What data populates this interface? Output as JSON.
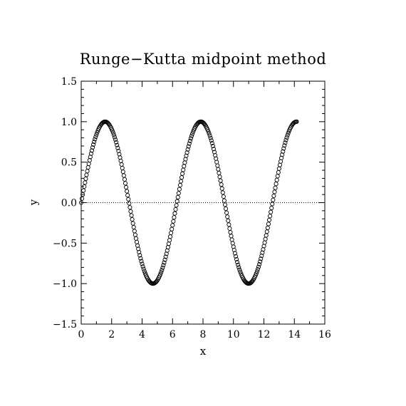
{
  "chart_data": {
    "type": "scatter",
    "title": "Runge−Kutta midpoint method",
    "xlabel": "x",
    "ylabel": "y",
    "xlim": [
      0,
      16
    ],
    "ylim": [
      -1.5,
      1.5
    ],
    "x_ticks": [
      0,
      2,
      4,
      6,
      8,
      10,
      12,
      14,
      16
    ],
    "x_tick_labels": [
      "0",
      "2",
      "4",
      "6",
      "8",
      "10",
      "12",
      "14",
      "16"
    ],
    "y_ticks": [
      -1.5,
      -1.0,
      -0.5,
      0.0,
      0.5,
      1.0,
      1.5
    ],
    "y_tick_labels": [
      "−1.5",
      "−1.0",
      "−0.5",
      "0.0",
      "0.5",
      "1.0",
      "1.5"
    ],
    "reference_line_y": 0.0,
    "grid": false,
    "marker": "open-circle",
    "series": [
      {
        "function": "y = sin(x)",
        "x_start": 0,
        "x_end": 14.14,
        "x_step": 0.05
      }
    ]
  }
}
